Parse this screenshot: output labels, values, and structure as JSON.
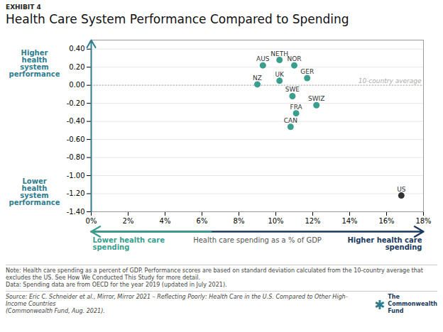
{
  "chart_data": {
    "type": "scatter",
    "exhibit_label": "EXHIBIT 4",
    "title": "Health Care System Performance Compared to Spending",
    "xlabel": "Health care spending as a % of GDP",
    "labels": [
      "AUS",
      "NETH",
      "NOR",
      "NZ",
      "UK",
      "GER",
      "SWE",
      "SWIZ",
      "FRA",
      "CAN",
      "US"
    ],
    "x": [
      9.3,
      10.2,
      11.0,
      9.0,
      10.2,
      11.7,
      10.9,
      12.2,
      11.1,
      10.8,
      16.8
    ],
    "y": [
      0.22,
      0.28,
      0.22,
      0.01,
      0.05,
      0.08,
      -0.12,
      -0.22,
      -0.31,
      -0.46,
      -1.22
    ],
    "colors": [
      "#3a9e8e",
      "#3a9e8e",
      "#3a9e8e",
      "#3a9e8e",
      "#3a9e8e",
      "#3a9e8e",
      "#3a9e8e",
      "#3a9e8e",
      "#3a9e8e",
      "#3a9e8e",
      "#333333"
    ],
    "xlim": [
      0,
      18
    ],
    "ylim": [
      -1.4,
      0.5
    ],
    "xticks": [
      {
        "value": 0,
        "label": "0%"
      },
      {
        "value": 2,
        "label": "2%"
      },
      {
        "value": 4,
        "label": "4%"
      },
      {
        "value": 6,
        "label": "6%"
      },
      {
        "value": 8,
        "label": "8%"
      },
      {
        "value": 10,
        "label": "10%"
      },
      {
        "value": 12,
        "label": "12%"
      },
      {
        "value": 14,
        "label": "14%"
      },
      {
        "value": 16,
        "label": "16%"
      },
      {
        "value": 18,
        "label": "18%"
      }
    ],
    "yticks": [
      {
        "value": -1.4,
        "label": "-1.40"
      },
      {
        "value": -1.2,
        "label": "-1.20"
      },
      {
        "value": -1.0,
        "label": "-1.00"
      },
      {
        "value": -0.8,
        "label": "-0.80"
      },
      {
        "value": -0.6,
        "label": "-0.60"
      },
      {
        "value": -0.4,
        "label": "-0.40"
      },
      {
        "value": -0.2,
        "label": "-0.20"
      },
      {
        "value": 0.0,
        "label": "0.00"
      },
      {
        "value": 0.2,
        "label": "0.20"
      },
      {
        "value": 0.4,
        "label": "0.40"
      }
    ],
    "grid": true,
    "reference_line": {
      "y": 0.0,
      "label": "10-country average",
      "color": "#aaaaaa",
      "line_style": "dotted"
    },
    "x_arrows": [
      {
        "direction": "right",
        "color": "#1a3a5c",
        "label": "Higher health care\nspending"
      },
      {
        "direction": "left",
        "color": "#3a9e8e",
        "label": "Lower health care\nspending"
      }
    ],
    "y_arrow": {
      "color": "#2d7d8e",
      "label_top": "Higher\nhealth\nsystem\nperformance",
      "label_bottom": "Lower\nhealth\nsystem\nperformance"
    },
    "note": "Note: Health care spending as a percent of GDP. Performance scores are based on standard deviation calculated from the 10-country average that excludes the US. See How We Conducted This Study for more detail.\nData: Spending data are from OECD for the year 2019 (updated in July 2021).",
    "source": "Source: Eric C. Schneider et al., Mirror, Mirror 2021 – Reflecting Poorly: Health Care in the U.S. Compared to Other High-Income Countries\n(Commonwealth Fund, Aug. 2021).",
    "logo": {
      "text": "The\nCommonwealth\nFund",
      "color": "#1a3a5c",
      "symbol": "✱",
      "symbol_color": "#2d7d8e"
    },
    "background": "#ffffff"
  }
}
